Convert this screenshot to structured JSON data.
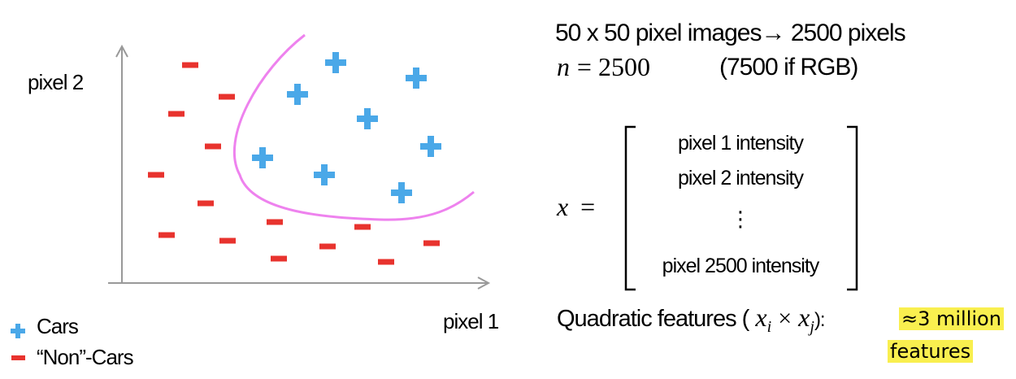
{
  "plot": {
    "y_label": "pixel 2",
    "x_label": "pixel 1",
    "legend": [
      {
        "symbol": "plus",
        "label": "Cars"
      },
      {
        "symbol": "minus",
        "label": "“Non”-Cars"
      }
    ],
    "colors": {
      "plus": "#4aa8e8",
      "minus": "#e8332e",
      "boundary": "#ee82ee",
      "axis": "#999999"
    }
  },
  "text": {
    "line1": "50 x 50 pixel images→ 2500 pixels",
    "n_var": "n",
    "n_eq": "= 2500",
    "rgb_note": "(7500 if RGB)",
    "x_var": "x",
    "x_eq": "=",
    "matrix_rows": [
      "pixel 1 intensity",
      "pixel 2 intensity",
      "⋮",
      "pixel 2500 intensity"
    ],
    "quad_prefix": "Quadratic features (",
    "quad_xi": "x",
    "quad_i": "i",
    "quad_times": "×",
    "quad_xj": "x",
    "quad_j": "j",
    "quad_suffix": "):",
    "million_1": "≈3 million",
    "million_2": "features"
  }
}
